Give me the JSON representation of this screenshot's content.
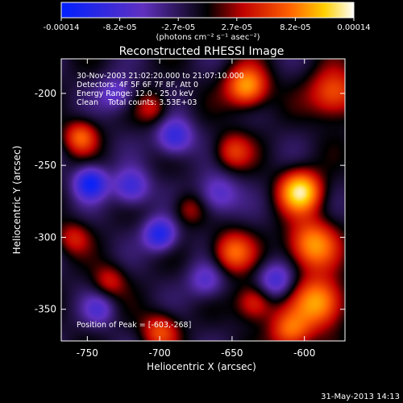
{
  "chart_data": {
    "type": "heatmap",
    "title": "Reconstructed RHESSI Image",
    "xlabel": "Heliocentric X (arcsec)",
    "ylabel": "Heliocentric Y (arcsec)",
    "xlim": [
      -768,
      -572
    ],
    "ylim": [
      -372,
      -176
    ],
    "xticks": [
      -750,
      -700,
      -650,
      -600
    ],
    "yticks": [
      -200,
      -250,
      -300,
      -350
    ],
    "colorbar": {
      "ticks": [
        "-0.00014",
        "-8.2e-05",
        "-2.7e-05",
        "2.7e-05",
        "8.2e-05",
        "0.00014"
      ],
      "unit_label": "(photons cm⁻² s⁻¹ asec⁻²)",
      "colors": [
        "#0020ff",
        "#6030c0",
        "#000000",
        "#c00000",
        "#ff6000",
        "#ffd000",
        "#ffffff"
      ]
    },
    "annotations": [
      "30-Nov-2003 21:02:20.000 to 21:07:10.000",
      "Detectors: 4F 5F 6F 7F 8F, Att 0",
      "Energy Range: 12.0 - 25.0 keV",
      "Clean    Total counts: 3.53E+03"
    ],
    "peak_label": "Position of Peak = [-603,-268]",
    "peak": [
      -603,
      -268
    ],
    "features": [
      {
        "x": -603,
        "y": -268,
        "amp": 1.0,
        "s": 10
      },
      {
        "x": -595,
        "y": -305,
        "amp": 0.75,
        "s": 12
      },
      {
        "x": -590,
        "y": -345,
        "amp": 0.8,
        "s": 12
      },
      {
        "x": -610,
        "y": -365,
        "amp": 0.6,
        "s": 10
      },
      {
        "x": -640,
        "y": -195,
        "amp": 0.8,
        "s": 10
      },
      {
        "x": -580,
        "y": -200,
        "amp": 0.6,
        "s": 12
      },
      {
        "x": -650,
        "y": -240,
        "amp": 0.45,
        "s": 9
      },
      {
        "x": -650,
        "y": -310,
        "amp": 0.6,
        "s": 10
      },
      {
        "x": -635,
        "y": -345,
        "amp": 0.5,
        "s": 9
      },
      {
        "x": -700,
        "y": -365,
        "amp": 0.5,
        "s": 9
      },
      {
        "x": -755,
        "y": -230,
        "amp": 0.55,
        "s": 8
      },
      {
        "x": -705,
        "y": -210,
        "amp": 0.35,
        "s": 8
      },
      {
        "x": -760,
        "y": -300,
        "amp": 0.35,
        "s": 8
      },
      {
        "x": -735,
        "y": -330,
        "amp": 0.35,
        "s": 8
      },
      {
        "x": -680,
        "y": -280,
        "amp": 0.3,
        "s": 8
      },
      {
        "x": -748,
        "y": -262,
        "amp": -0.75,
        "s": 8
      },
      {
        "x": -700,
        "y": -298,
        "amp": -0.7,
        "s": 8
      },
      {
        "x": -690,
        "y": -230,
        "amp": -0.6,
        "s": 9
      },
      {
        "x": -720,
        "y": -265,
        "amp": -0.55,
        "s": 9
      },
      {
        "x": -660,
        "y": -270,
        "amp": -0.45,
        "s": 10
      },
      {
        "x": -620,
        "y": -330,
        "amp": -0.5,
        "s": 9
      },
      {
        "x": -730,
        "y": -200,
        "amp": -0.4,
        "s": 9
      },
      {
        "x": -668,
        "y": -330,
        "amp": -0.4,
        "s": 9
      },
      {
        "x": -742,
        "y": -350,
        "amp": -0.35,
        "s": 8
      }
    ]
  },
  "footer": {
    "date": "31-May-2013 14:13"
  }
}
